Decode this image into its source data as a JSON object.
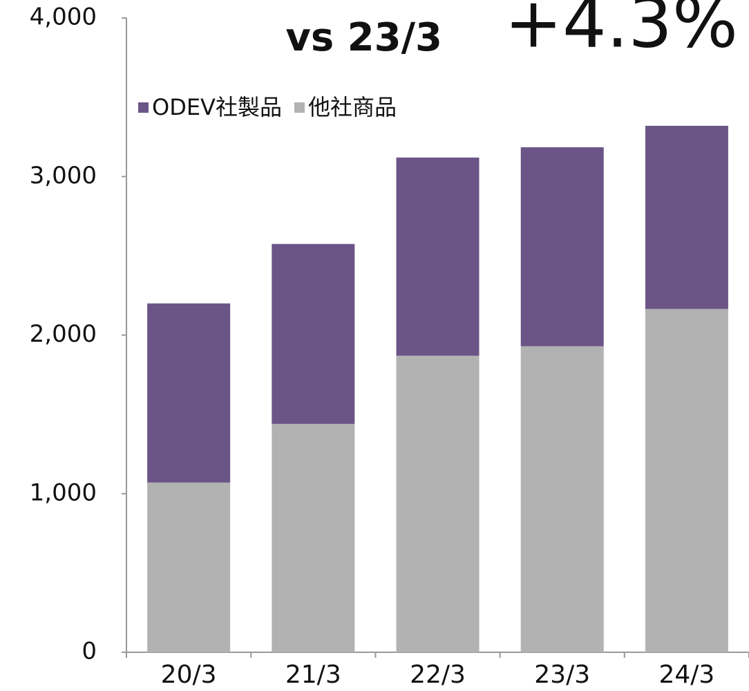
{
  "chart_data": {
    "type": "stacked_bar",
    "annotation": {
      "text": "vs 23/3",
      "highlight": "+4.3%",
      "highlight_color": "#6b5586"
    },
    "categories": [
      "20/3",
      "21/3",
      "22/3",
      "23/3",
      "24/3"
    ],
    "series": [
      {
        "name": "ODEV社製品",
        "color": "#6b5586",
        "values": [
          1130,
          1135,
          1250,
          1255,
          1155
        ]
      },
      {
        "name": "他社商品",
        "color": "#b2b2b2",
        "values": [
          1070,
          1440,
          1870,
          1930,
          2165
        ]
      }
    ],
    "ylim": [
      0,
      4000
    ],
    "yticks": [
      0,
      {
        "value": 1000,
        "label": "1,000"
      },
      {
        "value": 2000,
        "label": "2,000"
      },
      {
        "value": 3000,
        "label": "3,000"
      },
      {
        "value": 4000,
        "label": "4,000"
      }
    ],
    "legend": "top-left"
  }
}
